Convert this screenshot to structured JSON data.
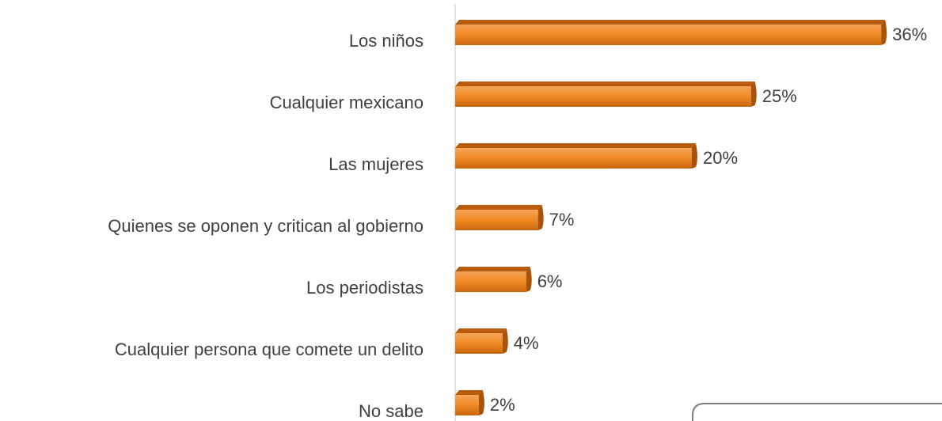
{
  "chart_data": {
    "type": "bar",
    "orientation": "horizontal",
    "categories": [
      "Los niños",
      "Cualquier mexicano",
      "Las mujeres",
      "Quienes se oponen y critican al gobierno",
      "Los periodistas",
      "Cualquier persona que comete un delito",
      "No sabe"
    ],
    "values": [
      36,
      25,
      20,
      7,
      6,
      4,
      2
    ],
    "value_labels": [
      "36%",
      "25%",
      "20%",
      "7%",
      "6%",
      "4%",
      "2%"
    ],
    "color": "#f08a24",
    "xlim": [
      0,
      40
    ]
  }
}
